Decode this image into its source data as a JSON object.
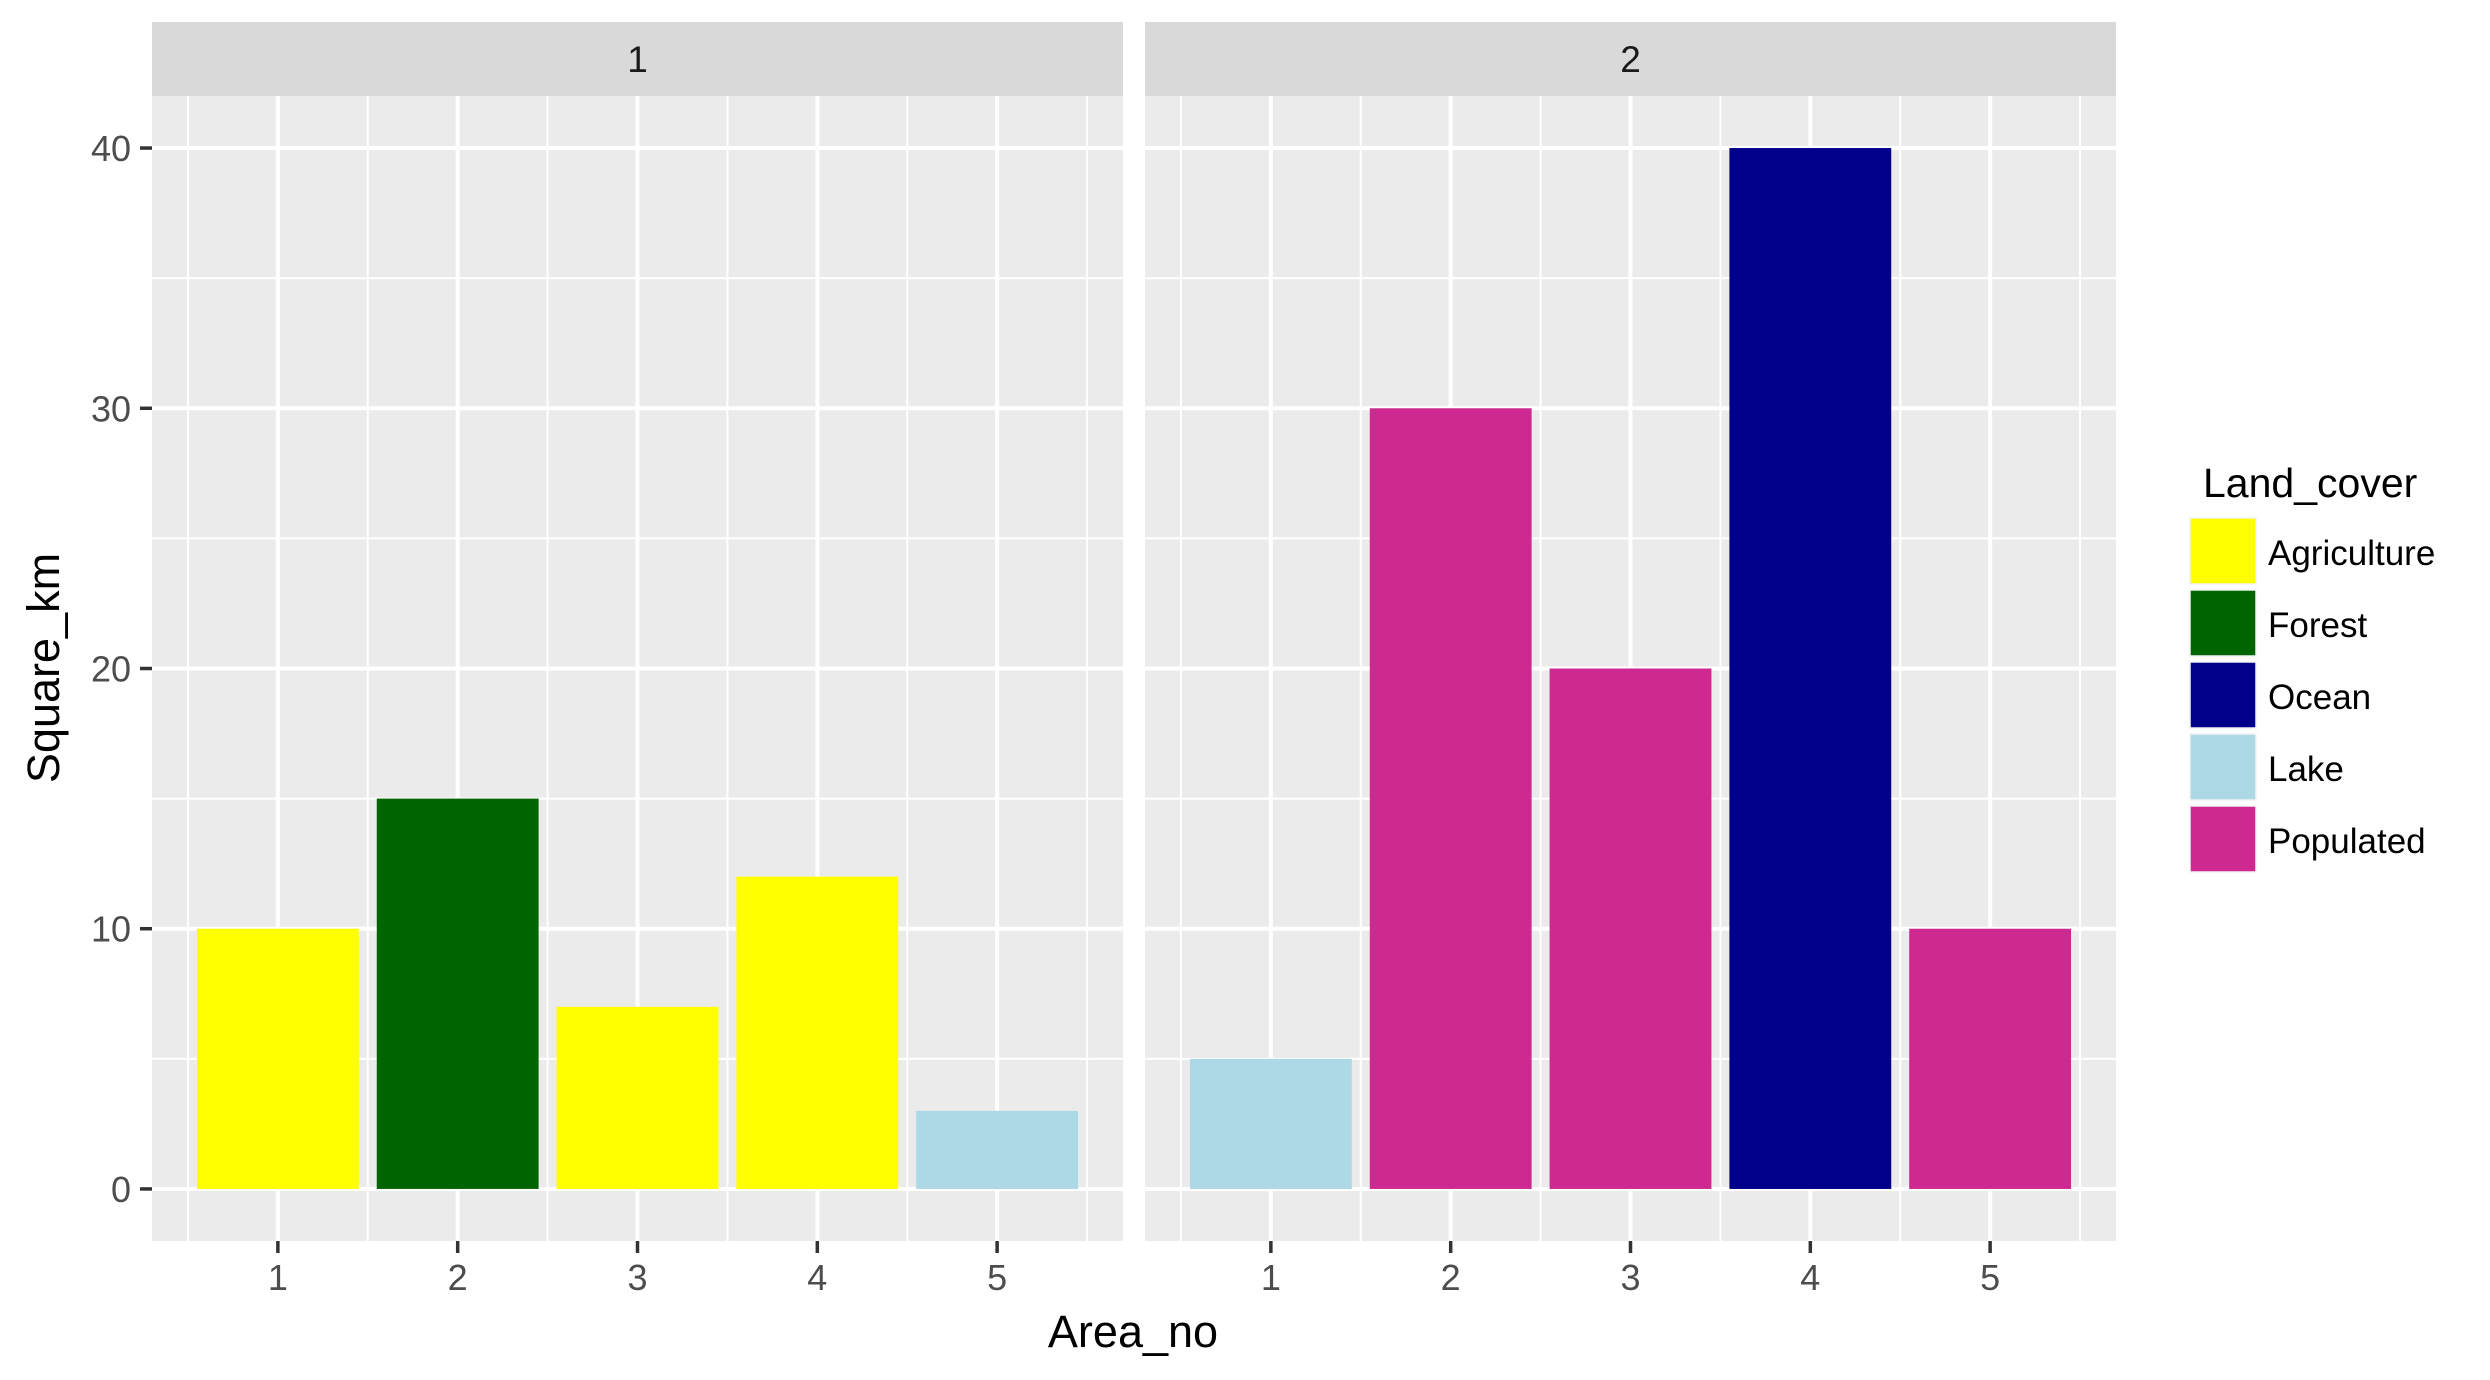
{
  "chart_data": {
    "type": "bar",
    "faceted_by": "Group",
    "xlabel": "Area_no",
    "ylabel": "Square_km",
    "ylim": [
      -2,
      42
    ],
    "xlim": [
      0.3,
      5.7
    ],
    "y_ticks": [
      0,
      10,
      20,
      30,
      40
    ],
    "x_ticks": [
      1,
      2,
      3,
      4,
      5
    ],
    "grid": true,
    "legend": {
      "title": "Land_cover",
      "position": "right",
      "entries": [
        {
          "label": "Agriculture",
          "color": "#FFFF00"
        },
        {
          "label": "Forest",
          "color": "#006400"
        },
        {
          "label": "Ocean",
          "color": "#00008B"
        },
        {
          "label": "Lake",
          "color": "#ADD8E6"
        },
        {
          "label": "Populated",
          "color": "#CD2990"
        }
      ]
    },
    "panels": [
      {
        "strip": "1",
        "categories": [
          1,
          2,
          3,
          4,
          5
        ],
        "values": [
          10,
          15,
          7,
          12,
          3
        ],
        "land_cover": [
          "Agriculture",
          "Forest",
          "Agriculture",
          "Agriculture",
          "Lake"
        ]
      },
      {
        "strip": "2",
        "categories": [
          1,
          2,
          3,
          4,
          5
        ],
        "values": [
          5,
          30,
          20,
          40,
          10
        ],
        "land_cover": [
          "Lake",
          "Populated",
          "Populated",
          "Ocean",
          "Populated"
        ]
      }
    ]
  },
  "theme": {
    "panel_bg": "#EBEBEB",
    "strip_bg": "#D9D9D9",
    "grid_color": "#FFFFFF",
    "tick_color": "#333333"
  }
}
